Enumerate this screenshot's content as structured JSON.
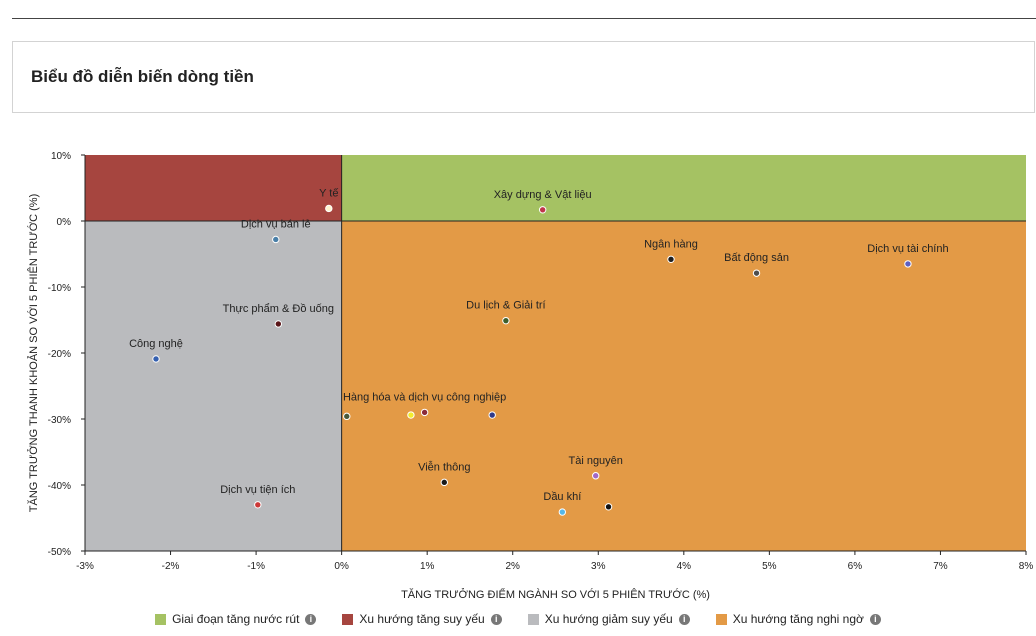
{
  "page": {
    "title": "Biểu đồ diễn biến dòng tiền"
  },
  "chart_data": {
    "type": "scatter",
    "xlabel": "TĂNG TRƯỞNG ĐIỂM NGÀNH SO VỚI 5 PHIÊN TRƯỚC (%)",
    "ylabel": "TĂNG TRƯỞNG THANH KHOẢN SO VỚI 5 PHIÊN TRƯỚC (%)",
    "xlim": [
      -3,
      8
    ],
    "ylim": [
      -50,
      10
    ],
    "x_ticks": [
      -3,
      -2,
      -1,
      0,
      1,
      2,
      3,
      4,
      5,
      6,
      7,
      8
    ],
    "x_tick_labels": [
      "-3%",
      "-2%",
      "-1%",
      "0%",
      "1%",
      "2%",
      "3%",
      "4%",
      "5%",
      "6%",
      "7%",
      "8%"
    ],
    "y_ticks": [
      10,
      0,
      -10,
      -20,
      -30,
      -40,
      -50
    ],
    "y_tick_labels": [
      "10%",
      "0%",
      "-10%",
      "-20%",
      "-30%",
      "-40%",
      "-50%"
    ],
    "grid": false,
    "legend_position": "bottom-center",
    "quadrants": [
      {
        "name": "Giai đoạn tăng nước rút",
        "color": "#a5c263",
        "x_range": [
          0,
          8
        ],
        "y_range": [
          0,
          10
        ]
      },
      {
        "name": "Xu hướng tăng suy yếu",
        "color": "#a6453f",
        "x_range": [
          -3,
          0
        ],
        "y_range": [
          0,
          10
        ]
      },
      {
        "name": "Xu hướng giảm suy yếu",
        "color": "#babbbe",
        "x_range": [
          -3,
          0
        ],
        "y_range": [
          -50,
          0
        ]
      },
      {
        "name": "Xu hướng tăng nghi ngờ",
        "color": "#e39a46",
        "x_range": [
          0,
          8
        ],
        "y_range": [
          -50,
          0
        ]
      }
    ],
    "points": [
      {
        "label": "Y tế",
        "x": -0.15,
        "y": 1.9,
        "color": "#fff6d0"
      },
      {
        "label": "Xây dựng & Vật liệu",
        "x": 2.35,
        "y": 1.7,
        "color": "#c0364a"
      },
      {
        "label": "Dịch vụ bán lẻ",
        "x": -0.77,
        "y": -2.8,
        "color": "#4a7fa8"
      },
      {
        "label": "Ngân hàng",
        "x": 3.85,
        "y": -5.8,
        "color": "#1e1e1e"
      },
      {
        "label": "Bất động sản",
        "x": 4.85,
        "y": -7.9,
        "color": "#4d4d4d"
      },
      {
        "label": "Dịch vụ tài chính",
        "x": 6.62,
        "y": -6.5,
        "color": "#5d5fc2"
      },
      {
        "label": "Du lịch & Giải trí",
        "x": 1.92,
        "y": -15.1,
        "color": "#3d5e2a"
      },
      {
        "label": "Thực phẩm & Đồ uống",
        "x": -0.74,
        "y": -15.6,
        "color": "#5a1518"
      },
      {
        "label": "Công nghệ",
        "x": -2.17,
        "y": -20.9,
        "color": "#3560b0"
      },
      {
        "label": "",
        "x": 0.06,
        "y": -29.6,
        "color": "#4a5a3a"
      },
      {
        "label": "",
        "x": 0.81,
        "y": -29.4,
        "color": "#f2ec2e"
      },
      {
        "label": "Hàng hóa và dịch vụ công nghiệp",
        "x": 0.97,
        "y": -29.0,
        "color": "#8a2a3a"
      },
      {
        "label": "",
        "x": 1.76,
        "y": -29.4,
        "color": "#2f3a8a"
      },
      {
        "label": "Viễn thông",
        "x": 1.2,
        "y": -39.6,
        "color": "#1a1a1a"
      },
      {
        "label": "Tài nguyên",
        "x": 2.97,
        "y": -38.6,
        "color": "#a168c6"
      },
      {
        "label": "Dầu khí",
        "x": 2.58,
        "y": -44.1,
        "color": "#56b8e8"
      },
      {
        "label": "",
        "x": 3.12,
        "y": -43.3,
        "color": "#111111"
      },
      {
        "label": "Dịch vụ tiện ích",
        "x": -0.98,
        "y": -43.0,
        "color": "#cc3838"
      }
    ]
  }
}
